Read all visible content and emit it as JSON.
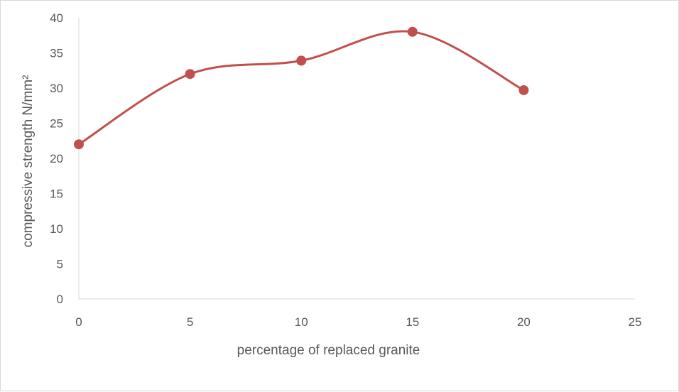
{
  "chart_data": {
    "type": "scatter",
    "style": "smooth-line-with-markers",
    "title": "",
    "xlabel": "percentage of replaced granite",
    "ylabel": "compressive strength N/mm²",
    "xlim": [
      0,
      25
    ],
    "ylim": [
      0,
      40
    ],
    "xticks": [
      0,
      5,
      10,
      15,
      20,
      25
    ],
    "yticks": [
      0,
      5,
      10,
      15,
      20,
      25,
      30,
      35,
      40
    ],
    "grid": false,
    "legend": "none",
    "series": [
      {
        "x": [
          0,
          5,
          10,
          15,
          20
        ],
        "y": [
          22,
          32,
          33.9,
          38,
          29.7
        ],
        "color": "#C0504D"
      }
    ]
  }
}
